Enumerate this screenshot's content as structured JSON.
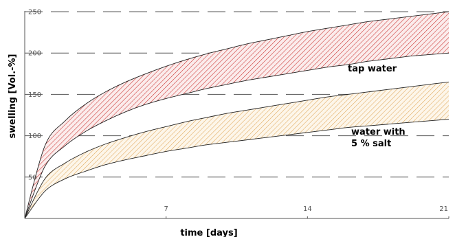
{
  "chart_data": {
    "type": "area",
    "xlabel": "time [days]",
    "ylabel": "swelling [Vol.-%]",
    "xlim": [
      0,
      21
    ],
    "ylim": [
      0,
      250
    ],
    "xticks": [
      7,
      14,
      21
    ],
    "yticks": [
      50,
      100,
      150,
      200,
      250
    ],
    "grid": "horizontal-dashed",
    "bands": [
      {
        "label_lines": [
          "tap water"
        ],
        "color": "#d9534f",
        "x": [
          0,
          1,
          2,
          3,
          4,
          5,
          6,
          7,
          8,
          9,
          10,
          11,
          12,
          13,
          14,
          15,
          16,
          17,
          18,
          19,
          20,
          21
        ],
        "upper": [
          0,
          88,
          118,
          138,
          153,
          165,
          175,
          184,
          192,
          199,
          205,
          211,
          216,
          221,
          226,
          230,
          234,
          238,
          241,
          244,
          247,
          250
        ],
        "lower": [
          0,
          63,
          88,
          105,
          118,
          129,
          138,
          145,
          151,
          157,
          162,
          167,
          171,
          175,
          179,
          183,
          186,
          190,
          193,
          196,
          198,
          200
        ]
      },
      {
        "label_lines": [
          "water with",
          "5 % salt"
        ],
        "color": "#e8b86a",
        "x": [
          0,
          1,
          2,
          3,
          4,
          5,
          6,
          7,
          8,
          9,
          10,
          11,
          12,
          13,
          14,
          15,
          16,
          17,
          18,
          19,
          20,
          21
        ],
        "upper": [
          0,
          48,
          67,
          80,
          90,
          98,
          105,
          111,
          117,
          122,
          127,
          131,
          135,
          139,
          143,
          147,
          150,
          153,
          156,
          159,
          162,
          165
        ],
        "lower": [
          0,
          33,
          48,
          57,
          65,
          71,
          76,
          81,
          85,
          89,
          92,
          95,
          98,
          101,
          104,
          107,
          110,
          112,
          114,
          116,
          118,
          120
        ]
      }
    ]
  }
}
